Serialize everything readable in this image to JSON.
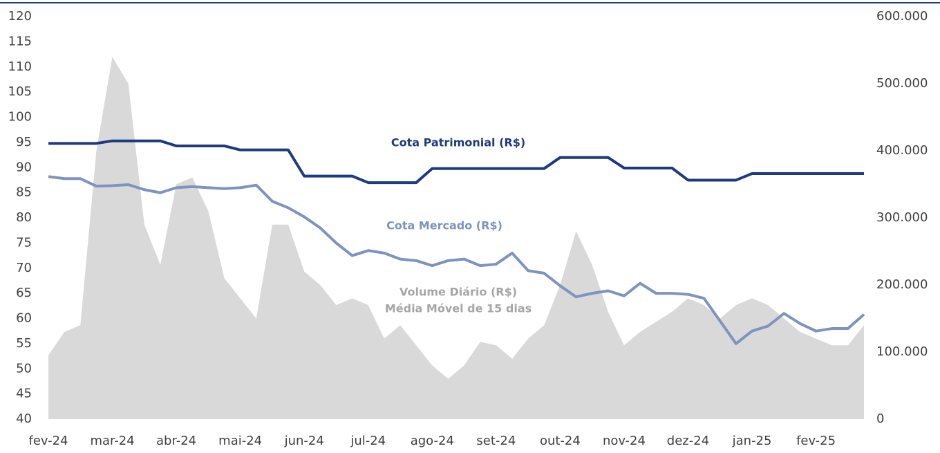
{
  "chart_data": {
    "type": "line",
    "categories": [
      "fev-24",
      null,
      null,
      null,
      "mar-24",
      null,
      null,
      null,
      "abr-24",
      null,
      null,
      null,
      "mai-24",
      null,
      null,
      null,
      "jun-24",
      null,
      null,
      null,
      "jul-24",
      null,
      null,
      null,
      "ago-24",
      null,
      null,
      null,
      "set-24",
      null,
      null,
      null,
      "out-24",
      null,
      null,
      null,
      "nov-24",
      null,
      null,
      null,
      "dez-24",
      null,
      null,
      null,
      "jan-25",
      null,
      null,
      null,
      "fev-25",
      null,
      null,
      null
    ],
    "series": [
      {
        "name": "Volume Diário (R$)",
        "type": "area",
        "axis": "y2",
        "color": "#d9d9d9",
        "values": [
          95000,
          130000,
          140000,
          400000,
          540000,
          500000,
          290000,
          230000,
          350000,
          360000,
          310000,
          210000,
          180000,
          150000,
          290000,
          290000,
          220000,
          200000,
          170000,
          180000,
          170000,
          120000,
          140000,
          110000,
          80000,
          60000,
          80000,
          115000,
          110000,
          90000,
          120000,
          140000,
          200000,
          280000,
          230000,
          160000,
          110000,
          130000,
          145000,
          160000,
          180000,
          170000,
          150000,
          170000,
          180000,
          170000,
          150000,
          130000,
          120000,
          110000,
          110000,
          140000
        ]
      },
      {
        "name": "Cota Patrimonial (R$)",
        "type": "line",
        "color": "#1f3a7d",
        "values": [
          94.8,
          94.8,
          94.8,
          94.8,
          95.3,
          95.3,
          95.3,
          95.3,
          94.3,
          94.3,
          94.3,
          94.3,
          93.5,
          93.5,
          93.5,
          93.5,
          88.3,
          88.3,
          88.3,
          88.3,
          87,
          87,
          87,
          87,
          89.8,
          89.8,
          89.8,
          89.8,
          89.8,
          89.8,
          89.8,
          89.8,
          92,
          92,
          92,
          92,
          89.9,
          89.9,
          89.9,
          89.9,
          87.5,
          87.5,
          87.5,
          87.5,
          88.8,
          88.8,
          88.8,
          88.8,
          88.8,
          88.8,
          88.8,
          88.8
        ]
      },
      {
        "name": "Cota Mercado (R$)",
        "type": "line",
        "color": "#7f93bf",
        "values": [
          88.2,
          87.8,
          87.8,
          86.3,
          86.4,
          86.6,
          85.6,
          85,
          86,
          86.2,
          86,
          85.8,
          86,
          86.5,
          83.3,
          82,
          80.2,
          78,
          75,
          72.5,
          73.5,
          73,
          71.8,
          71.5,
          70.5,
          71.5,
          71.8,
          70.5,
          70.8,
          73,
          69.5,
          69,
          66.5,
          64.3,
          65,
          65.5,
          64.5,
          67,
          65,
          65,
          64.8,
          64,
          59.5,
          55,
          57.5,
          58.5,
          61,
          59,
          57.5,
          58,
          58,
          60.8
        ]
      }
    ],
    "annotation": "Média Móvel de 15 dias",
    "ylim": [
      40,
      120
    ],
    "yticks": [
      40,
      45,
      50,
      55,
      60,
      65,
      70,
      75,
      80,
      85,
      90,
      95,
      100,
      105,
      110,
      115,
      120
    ],
    "y2lim": [
      0,
      600000
    ],
    "y2ticks": [
      0,
      {
        "value": 100000,
        "label": "100.000"
      },
      {
        "value": 200000,
        "label": "200.000"
      },
      {
        "value": 300000,
        "label": "300.000"
      },
      {
        "value": 400000,
        "label": "400.000"
      },
      {
        "value": 500000,
        "label": "500.000"
      },
      {
        "value": 600000,
        "label": "600.000"
      }
    ],
    "grid": false
  }
}
